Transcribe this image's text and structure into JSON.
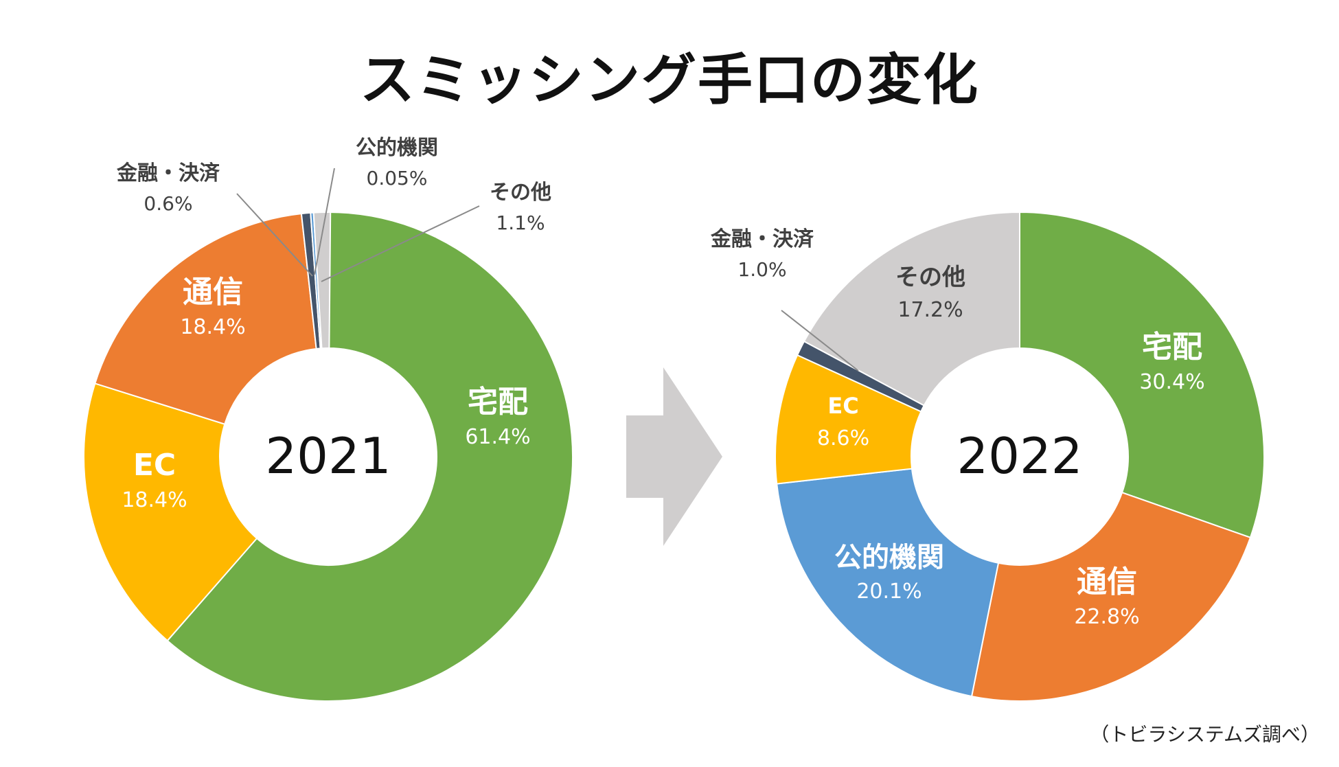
{
  "title": "スミッシング手口の変化",
  "source": "（トビラシステムズ調べ）",
  "chart_data": [
    {
      "type": "pie",
      "center_label": "2021",
      "slices": [
        {
          "name": "宅配",
          "value": 61.4,
          "label": "61.4%",
          "color": "#70AD47"
        },
        {
          "name": "EC",
          "value": 18.4,
          "label": "18.4%",
          "color": "#FFB800"
        },
        {
          "name": "通信",
          "value": 18.4,
          "label": "18.4%",
          "color": "#ED7D31"
        },
        {
          "name": "金融・決済",
          "value": 0.6,
          "label": "0.6%",
          "color": "#44546A"
        },
        {
          "name": "公的機関",
          "value": 0.05,
          "label": "0.05%",
          "color": "#5B9BD5"
        },
        {
          "name": "その他",
          "value": 1.1,
          "label": "1.1%",
          "color": "#D0CECE"
        }
      ]
    },
    {
      "type": "pie",
      "center_label": "2022",
      "slices": [
        {
          "name": "宅配",
          "value": 30.4,
          "label": "30.4%",
          "color": "#70AD47"
        },
        {
          "name": "通信",
          "value": 22.8,
          "label": "22.8%",
          "color": "#ED7D31"
        },
        {
          "name": "公的機関",
          "value": 20.1,
          "label": "20.1%",
          "color": "#5B9BD5"
        },
        {
          "name": "EC",
          "value": 8.6,
          "label": "8.6%",
          "color": "#FFB800"
        },
        {
          "name": "金融・決済",
          "value": 1.0,
          "label": "1.0%",
          "color": "#44546A"
        },
        {
          "name": "その他",
          "value": 17.2,
          "label": "17.2%",
          "color": "#D0CECE"
        }
      ]
    }
  ],
  "arrow_color": "#D0CECE"
}
